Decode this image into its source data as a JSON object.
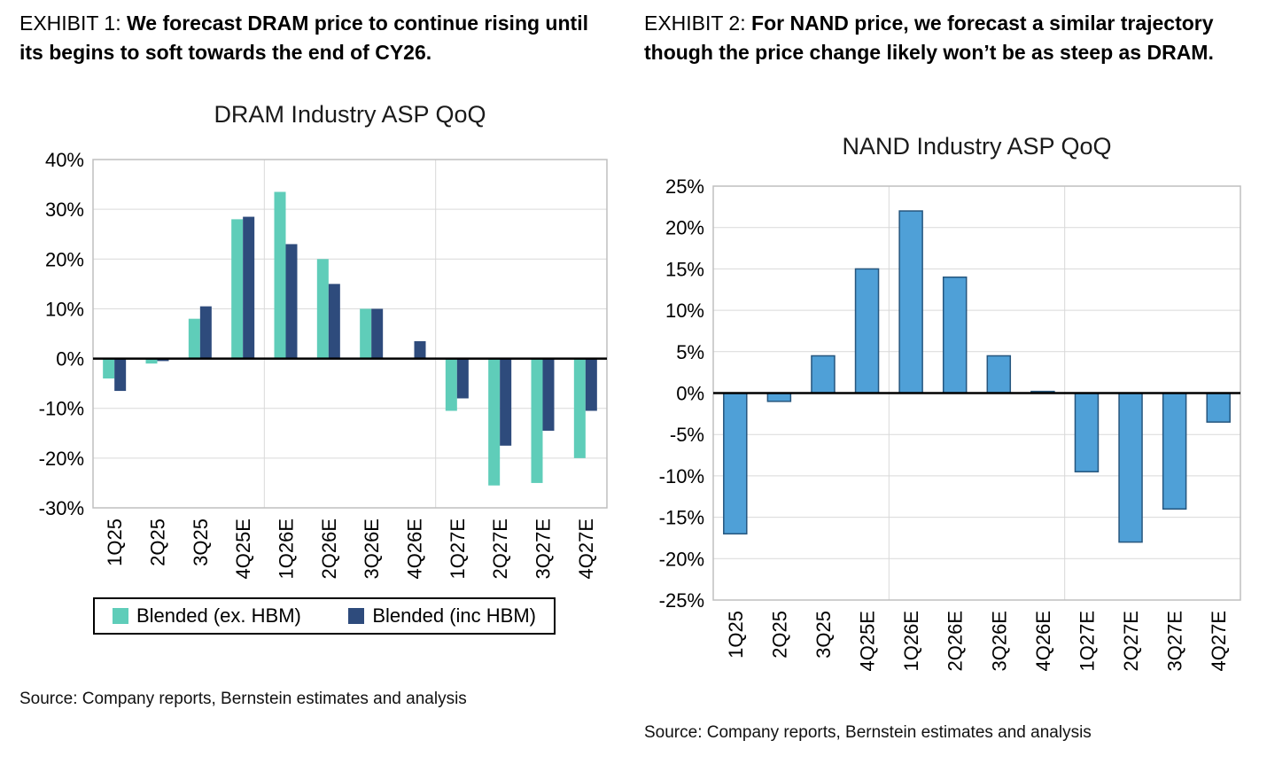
{
  "page": {
    "background": "#FFFFFF"
  },
  "exhibit1": {
    "label": "EXHIBIT 1:",
    "text": "We forecast DRAM price to continue rising until its begins to soft towards the end of CY26.",
    "source": "Source: Company reports, Bernstein estimates and analysis"
  },
  "exhibit2": {
    "label": "EXHIBIT 2:",
    "text": "For NAND price, we forecast a similar trajectory though the price change likely won’t be as steep as DRAM.",
    "source": "Source: Company reports, Bernstein estimates and analysis"
  },
  "chart_data": [
    {
      "type": "bar",
      "title": "DRAM Industry ASP QoQ",
      "categories": [
        "1Q25",
        "2Q25",
        "3Q25",
        "4Q25E",
        "1Q26E",
        "2Q26E",
        "3Q26E",
        "4Q26E",
        "1Q27E",
        "2Q27E",
        "3Q27E",
        "4Q27E"
      ],
      "series": [
        {
          "name": "Blended (ex. HBM)",
          "color": "#5FCDB9",
          "values": [
            -4,
            -1,
            8,
            28,
            33.5,
            20,
            10,
            0,
            -10.5,
            -25.5,
            -25,
            -20
          ]
        },
        {
          "name": "Blended (inc HBM)",
          "color": "#2E4B7C",
          "values": [
            -6.5,
            -0.5,
            10.5,
            28.5,
            23,
            15,
            10,
            3.5,
            -8,
            -17.5,
            -14.5,
            -10.5
          ]
        }
      ],
      "xlabel": "",
      "ylabel": "",
      "ylim": [
        -30,
        40
      ],
      "ytick_step": 10,
      "ytick_suffix": "%",
      "grid": true,
      "year_separators_after": [
        3,
        7
      ],
      "legend_position": "bottom",
      "grid_color": "#D9D9D9",
      "border_color": "#BFBFBF",
      "axis_color": "#000000"
    },
    {
      "type": "bar",
      "title": "NAND Industry ASP QoQ",
      "categories": [
        "1Q25",
        "2Q25",
        "3Q25",
        "4Q25E",
        "1Q26E",
        "2Q26E",
        "3Q26E",
        "4Q26E",
        "1Q27E",
        "2Q27E",
        "3Q27E",
        "4Q27E"
      ],
      "series": [
        {
          "name": "",
          "color": "#4FA0D7",
          "border_color": "#26567E",
          "values": [
            -17,
            -1,
            4.5,
            15,
            22,
            14,
            4.5,
            0.2,
            -9.5,
            -18,
            -14,
            -3.5
          ]
        }
      ],
      "xlabel": "",
      "ylabel": "",
      "ylim": [
        -25,
        25
      ],
      "ytick_step": 5,
      "ytick_suffix": "%",
      "grid": true,
      "year_separators_after": [
        3,
        7
      ],
      "legend_position": "none",
      "grid_color": "#D9D9D9",
      "border_color": "#BFBFBF",
      "axis_color": "#000000"
    }
  ]
}
